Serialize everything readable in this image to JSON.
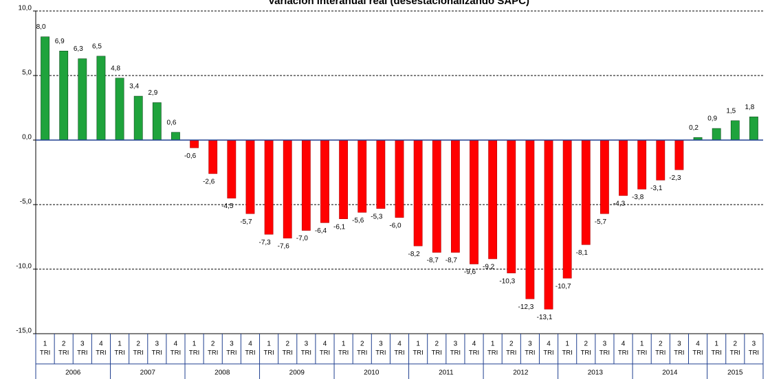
{
  "chart_data": {
    "type": "bar",
    "title": "Variación interanual real (desestacionalizando SAPC)",
    "categories": [
      "1",
      "2",
      "3",
      "4",
      "1",
      "2",
      "3",
      "4",
      "1",
      "2",
      "3",
      "4",
      "1",
      "2",
      "3",
      "4",
      "1",
      "2",
      "3",
      "4",
      "1",
      "2",
      "3",
      "4",
      "1",
      "2",
      "3",
      "4",
      "1",
      "2",
      "3",
      "4",
      "1",
      "2",
      "3",
      "4",
      "1",
      "2",
      "3"
    ],
    "quarter_suffix": "TRI",
    "groups": [
      "2006",
      "2007",
      "2008",
      "2009",
      "2010",
      "2011",
      "2012",
      "2013",
      "2014",
      "2015"
    ],
    "values": [
      8.0,
      6.9,
      6.3,
      6.5,
      4.8,
      3.4,
      2.9,
      0.6,
      -0.6,
      -2.6,
      -4.5,
      -5.7,
      -7.3,
      -7.6,
      -7.0,
      -6.4,
      -6.1,
      -5.6,
      -5.3,
      -6.0,
      -8.2,
      -8.7,
      -8.7,
      -9.6,
      -9.2,
      -10.3,
      -12.3,
      -13.1,
      -10.7,
      -8.1,
      -5.7,
      -4.3,
      -3.8,
      -3.1,
      -2.3,
      0.2,
      0.9,
      1.5,
      1.8
    ],
    "value_labels": [
      "8,0",
      "6,9",
      "6,3",
      "6,5",
      "4,8",
      "3,4",
      "2,9",
      "0,6",
      "-0,6",
      "-2,6",
      "-4,5",
      "-5,7",
      "-7,3",
      "-7,6",
      "-7,0",
      "-6,4",
      "-6,1",
      "-5,6",
      "-5,3",
      "-6,0",
      "-8,2",
      "-8,7",
      "-8,7",
      "-9,6",
      "-9,2",
      "-10,3",
      "-12,3",
      "-13,1",
      "-10,7",
      "-8,1",
      "-5,7",
      "-4,3",
      "-3,8",
      "-3,1",
      "-2,3",
      "0,2",
      "0,9",
      "1,5",
      "1,8"
    ],
    "positive_color": "#1fa33c",
    "negative_color": "#ff0000",
    "ylim": [
      -15,
      10
    ],
    "yticks": [
      {
        "value": -15,
        "label": "-15,0"
      },
      {
        "value": -10,
        "label": "-10,0"
      },
      {
        "value": -5,
        "label": "-5,0"
      },
      {
        "value": 0,
        "label": "0,0"
      },
      {
        "value": 5,
        "label": "5,0"
      },
      {
        "value": 10,
        "label": "10,0"
      }
    ],
    "grid": true
  }
}
